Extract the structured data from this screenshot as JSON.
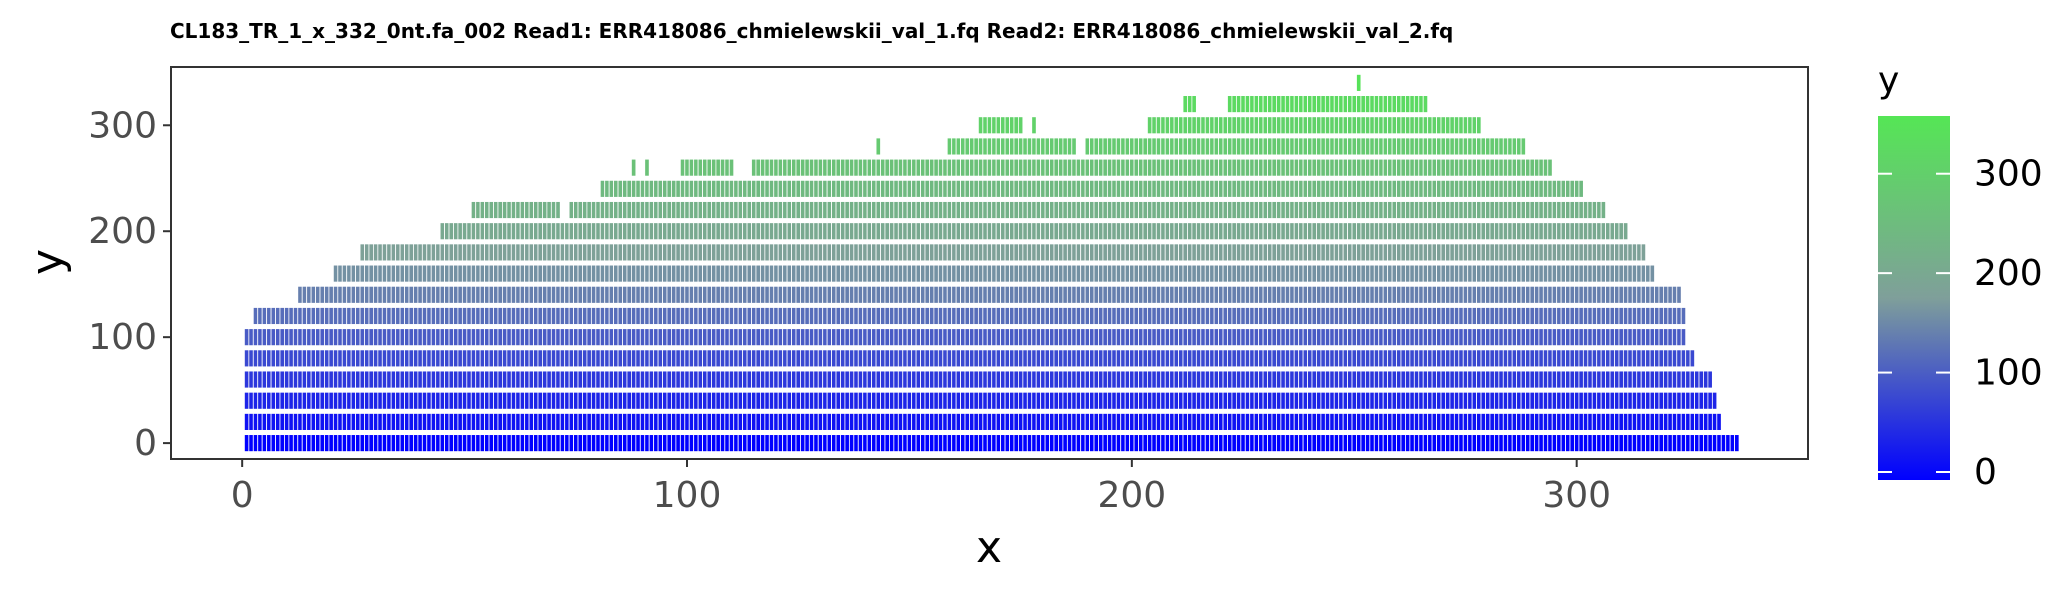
{
  "chart_data": {
    "type": "heatmap",
    "title": "CL183_TR_1_x_332_0nt.fa_002 Read1: ERR418086_chmielewskii_val_1.fq Read2: ERR418086_chmielewskii_val_2.fq",
    "xlabel": "x",
    "ylabel": "y",
    "xlim": [
      -16,
      352
    ],
    "ylim": [
      -15,
      355
    ],
    "x_ticks": [
      0,
      100,
      200,
      300
    ],
    "x_tick_labels": [
      "0",
      "100",
      "200",
      "300"
    ],
    "y_ticks": [
      0,
      100,
      200,
      300
    ],
    "y_tick_labels": [
      "0",
      "100",
      "200",
      "300"
    ],
    "grid": false,
    "legend": {
      "title": "y",
      "position": "right",
      "range": [
        0,
        350
      ],
      "ticks": [
        0,
        100,
        200,
        300
      ],
      "tick_labels": [
        "0",
        "100",
        "200",
        "300"
      ],
      "colors": {
        "low": "#0000ff",
        "mid": "#7f9f9a",
        "high": "#55e655"
      }
    },
    "tile_height": 16,
    "rows": [
      {
        "y": 0,
        "segments": [
          [
            1,
            336
          ]
        ]
      },
      {
        "y": 20,
        "segments": [
          [
            1,
            332
          ]
        ]
      },
      {
        "y": 40,
        "segments": [
          [
            1,
            331
          ]
        ]
      },
      {
        "y": 60,
        "segments": [
          [
            1,
            330
          ]
        ]
      },
      {
        "y": 80,
        "segments": [
          [
            1,
            326
          ]
        ]
      },
      {
        "y": 100,
        "segments": [
          [
            1,
            324
          ]
        ]
      },
      {
        "y": 120,
        "segments": [
          [
            3,
            324
          ]
        ]
      },
      {
        "y": 140,
        "segments": [
          [
            13,
            323
          ]
        ]
      },
      {
        "y": 160,
        "segments": [
          [
            21,
            317
          ]
        ]
      },
      {
        "y": 180,
        "segments": [
          [
            27,
            315
          ]
        ]
      },
      {
        "y": 200,
        "segments": [
          [
            45,
            311
          ]
        ]
      },
      {
        "y": 220,
        "segments": [
          [
            52,
            71
          ],
          [
            74,
            306
          ]
        ]
      },
      {
        "y": 240,
        "segments": [
          [
            81,
            301
          ]
        ]
      },
      {
        "y": 260,
        "segments": [
          [
            88,
            88
          ],
          [
            91,
            91
          ],
          [
            99,
            110
          ],
          [
            115,
            294
          ]
        ]
      },
      {
        "y": 280,
        "segments": [
          [
            143,
            143
          ],
          [
            159,
            187
          ],
          [
            190,
            288
          ]
        ]
      },
      {
        "y": 300,
        "segments": [
          [
            166,
            175
          ],
          [
            178,
            178
          ],
          [
            204,
            278
          ]
        ]
      },
      {
        "y": 320,
        "segments": [
          [
            212,
            214
          ],
          [
            222,
            266
          ]
        ]
      },
      {
        "y": 340,
        "segments": [
          [
            251,
            251
          ]
        ]
      }
    ]
  }
}
